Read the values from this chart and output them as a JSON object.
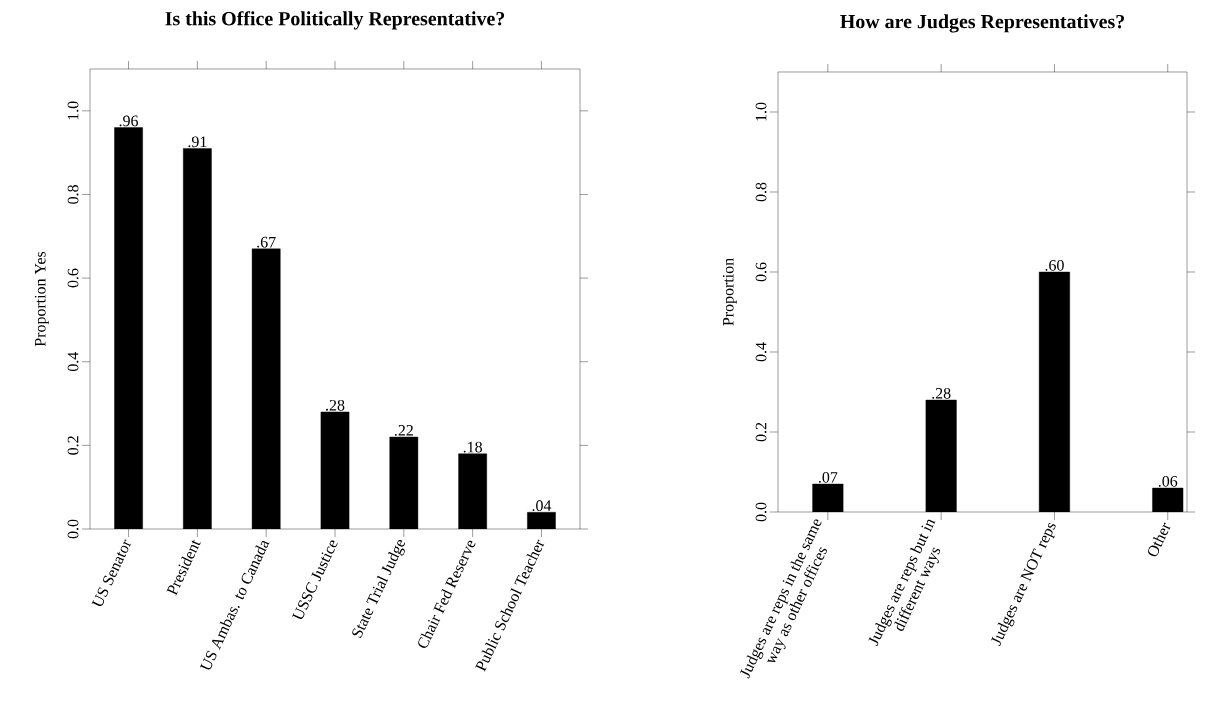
{
  "chart_data": [
    {
      "type": "bar",
      "title": "Is this Office Politically Representative?",
      "ylabel": "Proportion Yes",
      "categories": [
        "US Senator",
        "President",
        "US Ambas. to Canada",
        "USSC Justice",
        "State Trial Judge",
        "Chair Fed Reserve",
        "Public School Teacher"
      ],
      "values": [
        0.96,
        0.91,
        0.67,
        0.28,
        0.22,
        0.18,
        0.04
      ],
      "value_labels": [
        ".96",
        ".91",
        ".67",
        ".28",
        ".22",
        ".18",
        ".04"
      ],
      "color": "#000000",
      "ylim": [
        0,
        1.1
      ],
      "yticks": [
        {
          "value": 0,
          "label": "0.0"
        },
        {
          "value": 0.2,
          "label": "0.2"
        },
        {
          "value": 0.4,
          "label": "0.4"
        },
        {
          "value": 0.6,
          "label": "0.6"
        },
        {
          "value": 0.8,
          "label": "0.8"
        },
        {
          "value": 1,
          "label": "1.0"
        }
      ]
    },
    {
      "type": "bar",
      "title": "How are Judges Representatives?",
      "ylabel": "Proportion",
      "categories": [
        "Judges are reps in the same way as other offices",
        "Judges are reps but in different ways",
        "Judges are NOT reps",
        "Other"
      ],
      "values": [
        0.07,
        0.28,
        0.6,
        0.06
      ],
      "value_labels": [
        ".07",
        ".28",
        ".60",
        ".06"
      ],
      "color": "#000000",
      "ylim": [
        0,
        1.1
      ],
      "yticks": [
        {
          "value": 0,
          "label": "0.0"
        },
        {
          "value": 0.2,
          "label": "0.2"
        },
        {
          "value": 0.4,
          "label": "0.4"
        },
        {
          "value": 0.6,
          "label": "0.6"
        },
        {
          "value": 0.8,
          "label": "0.8"
        },
        {
          "value": 1,
          "label": "1.0"
        }
      ]
    }
  ]
}
